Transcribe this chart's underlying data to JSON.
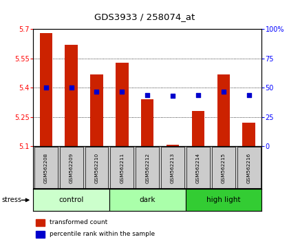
{
  "title": "GDS3933 / 258074_at",
  "samples": [
    "GSM562208",
    "GSM562209",
    "GSM562210",
    "GSM562211",
    "GSM562212",
    "GSM562213",
    "GSM562214",
    "GSM562215",
    "GSM562216"
  ],
  "transformed_counts": [
    5.68,
    5.62,
    5.47,
    5.53,
    5.34,
    5.11,
    5.28,
    5.47,
    5.22
  ],
  "percentile_ranks": [
    50,
    50,
    47,
    47,
    44,
    43,
    44,
    47,
    44
  ],
  "ylim_left": [
    5.1,
    5.7
  ],
  "ylim_right": [
    0,
    100
  ],
  "yticks_left": [
    5.1,
    5.25,
    5.4,
    5.55,
    5.7
  ],
  "yticks_right": [
    0,
    25,
    50,
    75,
    100
  ],
  "groups": [
    {
      "label": "control",
      "indices": [
        0,
        1,
        2
      ],
      "color": "#ccffcc"
    },
    {
      "label": "dark",
      "indices": [
        3,
        4,
        5
      ],
      "color": "#aaffaa"
    },
    {
      "label": "high light",
      "indices": [
        6,
        7,
        8
      ],
      "color": "#33cc33"
    }
  ],
  "bar_color": "#cc2200",
  "dot_color": "#0000cc",
  "bar_width": 0.5,
  "baseline": 5.1,
  "bg_plot": "#ffffff",
  "stress_label": "stress",
  "legend_entries": [
    "transformed count",
    "percentile rank within the sample"
  ]
}
